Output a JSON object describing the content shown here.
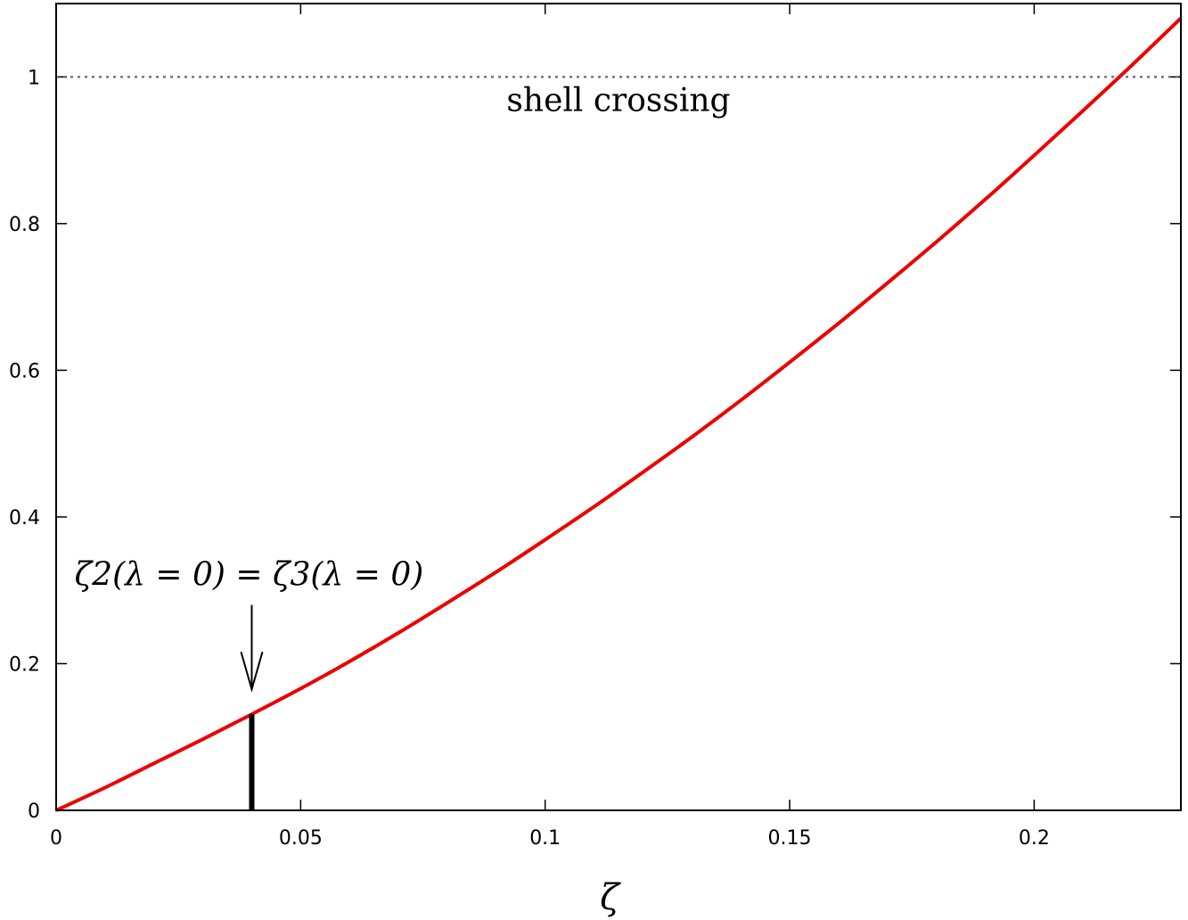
{
  "chart_data": {
    "type": "line",
    "title": "",
    "xlabel": "ζ",
    "ylabel": "",
    "xlim": [
      0,
      0.23
    ],
    "ylim": [
      0,
      1.1
    ],
    "x_ticks": [
      0,
      0.05,
      0.1,
      0.15,
      0.2
    ],
    "x_tick_labels": [
      "0",
      "0.05",
      "0.1",
      "0.15",
      "0.2"
    ],
    "y_ticks": [
      0,
      0.2,
      0.4,
      0.6,
      0.8,
      1.0
    ],
    "y_tick_labels": [
      "0",
      "0.2",
      "0.4",
      "0.6",
      "0.8",
      "1"
    ],
    "grid": false,
    "series": [
      {
        "color": "#ee0000",
        "x": [
          0,
          0.01,
          0.02,
          0.03,
          0.04,
          0.05,
          0.06,
          0.07,
          0.08,
          0.09,
          0.1,
          0.11,
          0.12,
          0.13,
          0.14,
          0.15,
          0.16,
          0.17,
          0.18,
          0.19,
          0.2,
          0.21,
          0.22,
          0.23
        ],
        "y": [
          0,
          0.031,
          0.064,
          0.097,
          0.131,
          0.166,
          0.203,
          0.242,
          0.283,
          0.325,
          0.369,
          0.414,
          0.461,
          0.509,
          0.559,
          0.611,
          0.664,
          0.719,
          0.775,
          0.833,
          0.893,
          0.954,
          1.016,
          1.08
        ]
      }
    ],
    "reference_line": {
      "y": 1.0,
      "style": "dotted",
      "color": "#777777",
      "label": "shell crossing"
    },
    "marker_bar": {
      "x": 0.04,
      "y_top": 0.131,
      "color": "#000000"
    },
    "annotation": {
      "text": "ζ2(λ = 0) = ζ3(λ = 0)",
      "arrow_x": 0.04,
      "arrow_from_y": 0.28,
      "arrow_to_y": 0.165
    }
  }
}
